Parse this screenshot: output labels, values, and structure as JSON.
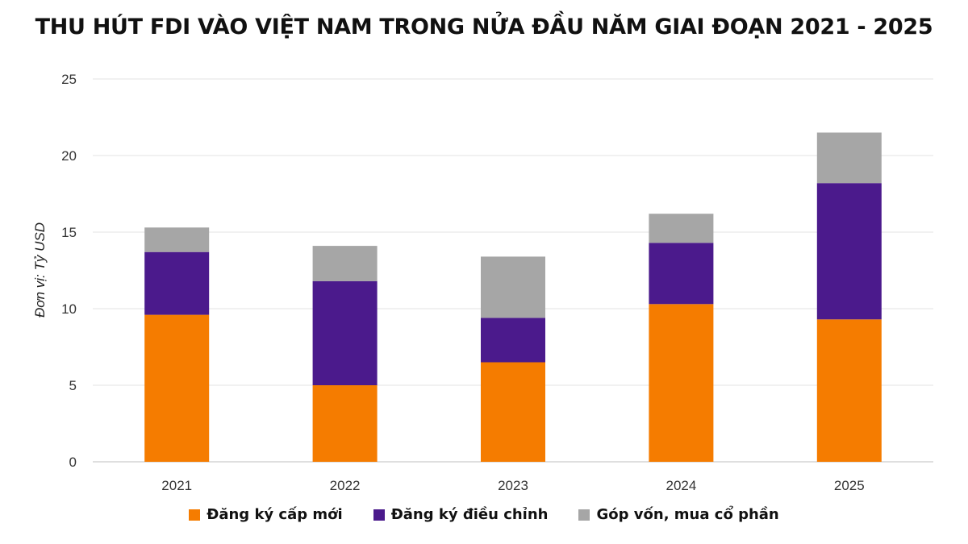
{
  "chart_data": {
    "type": "bar",
    "stacked": true,
    "title": "THU HÚT FDI VÀO VIỆT NAM TRONG NỬA ĐẦU NĂM GIAI ĐOẠN 2021 - 2025",
    "ylabel": "Đơn vị: Tỷ USD",
    "xlabel": "",
    "categories": [
      "2021",
      "2022",
      "2023",
      "2024",
      "2025"
    ],
    "ylim": [
      0,
      25
    ],
    "yticks": [
      "0",
      "5",
      "10",
      "15",
      "20",
      "25"
    ],
    "grid": true,
    "legend_position": "bottom",
    "series": [
      {
        "name": "Đăng ký cấp mới",
        "color": "#F57C00",
        "values": [
          9.6,
          5.0,
          6.5,
          10.3,
          9.3
        ]
      },
      {
        "name": "Đăng ký điều chỉnh",
        "color": "#4B1A8C",
        "values": [
          4.1,
          6.8,
          2.9,
          4.0,
          8.9
        ]
      },
      {
        "name": "Góp vốn, mua cổ phần",
        "color": "#A6A6A6",
        "values": [
          1.6,
          2.3,
          4.0,
          1.9,
          3.3
        ]
      }
    ]
  }
}
